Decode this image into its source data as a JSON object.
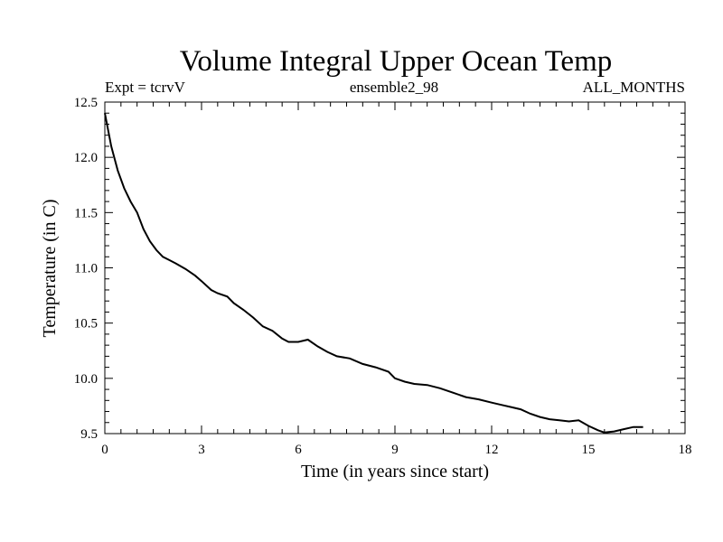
{
  "chart_data": {
    "type": "line",
    "title": "Volume Integral Upper Ocean Temp",
    "subtitle_left": "Expt = tcrvV",
    "subtitle_center": "ensemble2_98",
    "subtitle_right": "ALL_MONTHS",
    "xlabel": "Time (in years since start)",
    "ylabel": "Temperature (in C)",
    "xlim": [
      0,
      18
    ],
    "ylim": [
      9.5,
      12.5
    ],
    "xticks": [
      0,
      3,
      6,
      9,
      12,
      15,
      18
    ],
    "xtick_labels": [
      "0",
      "3",
      "6",
      "9",
      "12",
      "15",
      "18"
    ],
    "yticks": [
      9.5,
      10.0,
      10.5,
      11.0,
      11.5,
      12.0,
      12.5
    ],
    "ytick_labels": [
      "9.5",
      "10.0",
      "10.5",
      "11.0",
      "11.5",
      "12.0",
      "12.5"
    ],
    "grid": false,
    "series": [
      {
        "x": [
          0.0,
          0.2,
          0.4,
          0.6,
          0.8,
          1.0,
          1.2,
          1.4,
          1.6,
          1.8,
          2.0,
          2.2,
          2.5,
          2.8,
          3.0,
          3.3,
          3.5,
          3.8,
          4.0,
          4.3,
          4.6,
          4.9,
          5.2,
          5.5,
          5.7,
          6.0,
          6.3,
          6.6,
          6.9,
          7.2,
          7.6,
          8.0,
          8.4,
          8.8,
          9.0,
          9.3,
          9.6,
          10.0,
          10.4,
          10.8,
          11.2,
          11.6,
          12.0,
          12.3,
          12.6,
          12.9,
          13.2,
          13.5,
          13.8,
          14.1,
          14.4,
          14.7,
          15.0,
          15.3,
          15.5,
          15.8,
          16.1,
          16.4,
          16.7
        ],
        "y": [
          12.4,
          12.1,
          11.88,
          11.72,
          11.6,
          11.5,
          11.35,
          11.24,
          11.16,
          11.1,
          11.07,
          11.04,
          10.99,
          10.93,
          10.88,
          10.8,
          10.77,
          10.74,
          10.68,
          10.62,
          10.55,
          10.47,
          10.43,
          10.36,
          10.33,
          10.33,
          10.35,
          10.29,
          10.24,
          10.2,
          10.18,
          10.13,
          10.1,
          10.06,
          10.0,
          9.97,
          9.95,
          9.94,
          9.91,
          9.87,
          9.83,
          9.81,
          9.78,
          9.76,
          9.74,
          9.72,
          9.68,
          9.65,
          9.63,
          9.62,
          9.61,
          9.62,
          9.57,
          9.53,
          9.51,
          9.52,
          9.54,
          9.56,
          9.56
        ]
      }
    ]
  }
}
